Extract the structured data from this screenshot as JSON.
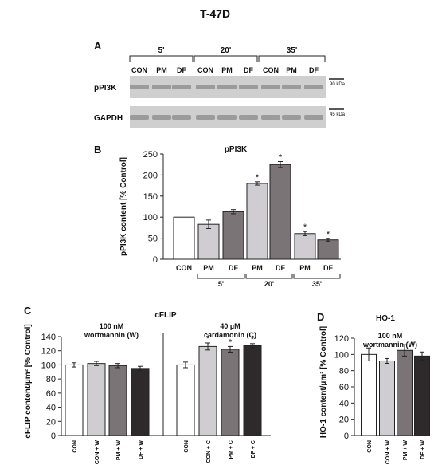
{
  "figure": {
    "title": "T-47D",
    "colors": {
      "con": "#ffffff",
      "pm": "#d0cdd2",
      "df": "#7b7476",
      "df_w": "#2e2a2b",
      "axis": "#222222",
      "blot_bg": "#cfcfcf",
      "blot_band": "#8a8a8a"
    }
  },
  "panel_a": {
    "label": "A",
    "time_groups": [
      "5'",
      "20'",
      "35'"
    ],
    "lane_labels": [
      "CON",
      "PM",
      "DF",
      "CON",
      "PM",
      "DF",
      "CON",
      "PM",
      "DF"
    ],
    "blots": [
      {
        "name": "pPI3K",
        "marker": "90 kDa"
      },
      {
        "name": "GAPDH",
        "marker": "45 kDa"
      }
    ]
  },
  "chart_data": [
    {
      "panel": "B",
      "type": "bar",
      "title": "pPI3K",
      "ylabel": "pPI3K content [% Control]",
      "ylim": [
        0,
        250
      ],
      "yticks": [
        0,
        50,
        100,
        150,
        200,
        250
      ],
      "categories": [
        "CON",
        "PM",
        "DF",
        "PM",
        "DF",
        "PM",
        "DF"
      ],
      "groups": [
        "5'",
        "20'",
        "35'"
      ],
      "values": [
        100,
        83,
        113,
        180,
        225,
        61,
        46
      ],
      "errors": [
        0,
        10,
        5,
        4,
        7,
        5,
        3
      ],
      "significant": [
        false,
        false,
        false,
        true,
        true,
        true,
        true
      ],
      "bar_colors": [
        "con",
        "pm",
        "df",
        "pm",
        "df",
        "pm",
        "df"
      ]
    },
    {
      "panel": "C",
      "type": "bar",
      "title": "cFLIP",
      "ylabel": "cFLIP content/µm² [% Control]",
      "ylim": [
        0,
        140
      ],
      "yticks": [
        0,
        20,
        40,
        60,
        80,
        100,
        120,
        140
      ],
      "treatments": [
        "100 nM wortmannin (W)",
        "40 µM cardamonin (C)"
      ],
      "categories": [
        "CON",
        "CON + W",
        "PM + W",
        "DF + W",
        "CON",
        "CON + C",
        "PM + C",
        "DF + C"
      ],
      "values": [
        100,
        102,
        99,
        95,
        100,
        126,
        122,
        127
      ],
      "errors": [
        3,
        3,
        3,
        3,
        4,
        5,
        4,
        3
      ],
      "significant": [
        false,
        false,
        false,
        false,
        false,
        true,
        true,
        true
      ],
      "bar_colors": [
        "con",
        "pm",
        "df",
        "df_w",
        "con",
        "pm",
        "df",
        "df_w"
      ]
    },
    {
      "panel": "D",
      "type": "bar",
      "title": "HO-1",
      "ylabel": "HO-1 content/µm² [% Control]",
      "ylim": [
        0,
        120
      ],
      "yticks": [
        0,
        20,
        40,
        60,
        80,
        100,
        120
      ],
      "treatment": "100 nM wortmannin (W)",
      "categories": [
        "CON",
        "CON + W",
        "PM + W",
        "DF + W"
      ],
      "values": [
        100,
        92,
        105,
        98
      ],
      "errors": [
        8,
        3,
        7,
        5
      ],
      "significant": [
        false,
        false,
        false,
        false
      ],
      "bar_colors": [
        "con",
        "pm",
        "df",
        "df_w"
      ]
    }
  ]
}
